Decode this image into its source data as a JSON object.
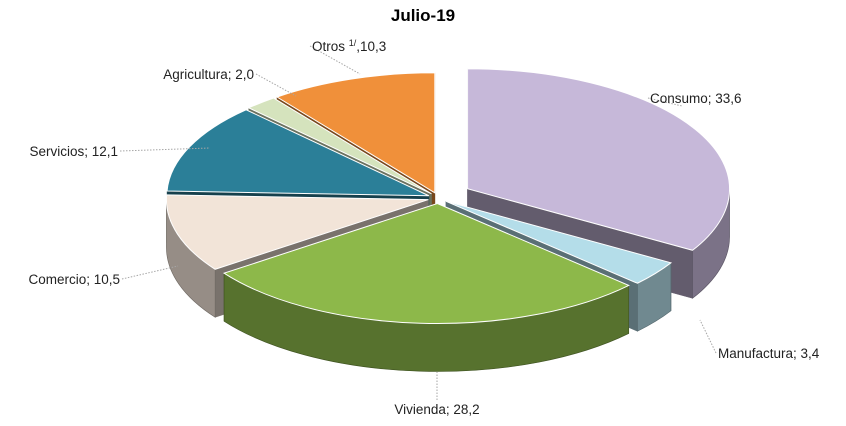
{
  "chart_data": {
    "type": "pie",
    "title": "Julio-19",
    "slices": [
      {
        "name": "Consumo",
        "label": "Consumo; 33,6",
        "value": 33.6,
        "color": "#c6b8d9",
        "exploded": true
      },
      {
        "name": "Manufactura",
        "label": "Manufactura; 3,4",
        "value": 3.4,
        "color": "#b4dde9",
        "exploded": false
      },
      {
        "name": "Vivienda",
        "label": "Vivienda; 28,2",
        "value": 28.2,
        "color": "#8db84a",
        "exploded": false
      },
      {
        "name": "Comercio",
        "label": "Comercio; 10,5",
        "value": 10.5,
        "color": "#f2e4d8",
        "exploded": false
      },
      {
        "name": "Servicios",
        "label": "Servicios; 12,1",
        "value": 12.1,
        "color": "#2b7f98",
        "exploded": false
      },
      {
        "name": "Agricultura",
        "label": "Agricultura; 2,0",
        "value": 2.0,
        "color": "#d5e3bd",
        "exploded": false
      },
      {
        "name": "Otros",
        "label_main": "Otros ",
        "label_sup": "1/",
        "label_tail": ",10,3",
        "value": 10.3,
        "color": "#f0903a",
        "exploded": false
      }
    ]
  }
}
